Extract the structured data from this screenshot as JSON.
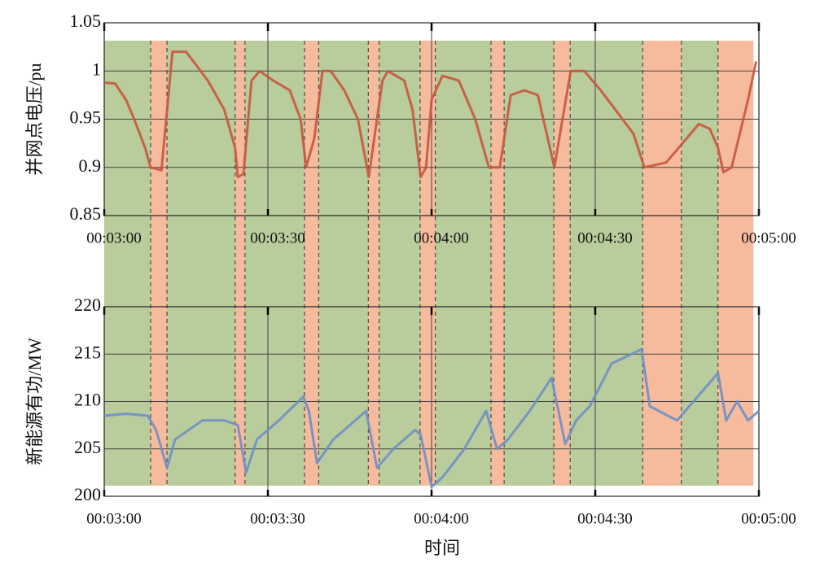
{
  "chart_data": [
    {
      "type": "line",
      "ylabel": "并网点电压/pu",
      "x": [
        180,
        182,
        184,
        185.5,
        187.5,
        188.5,
        190.5,
        192.5,
        195,
        197,
        199,
        202,
        204,
        204.5,
        205.5,
        207,
        208.5,
        211,
        214,
        216,
        217,
        218.5,
        220,
        221.5,
        224,
        226.5,
        228.5,
        229.5,
        231,
        232,
        235,
        236.5,
        238,
        239,
        240,
        242,
        245,
        248,
        250.5,
        252.5,
        254.5,
        257,
        259.5,
        260.5,
        262.5,
        264,
        265.5,
        268,
        271,
        275,
        277,
        279,
        283,
        286,
        289,
        291,
        292.5,
        293.5,
        295,
        298,
        299.5
      ],
      "series": [
        {
          "name": "并网点电压",
          "color": "#c8573e",
          "values": [
            0.988,
            0.987,
            0.97,
            0.95,
            0.92,
            0.9,
            0.897,
            1.02,
            1.02,
            1.005,
            0.99,
            0.96,
            0.92,
            0.89,
            0.893,
            0.99,
            1.0,
            0.99,
            0.98,
            0.95,
            0.9,
            0.93,
            1.0,
            1.0,
            0.98,
            0.95,
            0.89,
            0.93,
            0.99,
            1.0,
            0.99,
            0.96,
            0.89,
            0.9,
            0.97,
            0.995,
            0.99,
            0.95,
            0.9,
            0.9,
            0.975,
            0.98,
            0.975,
            0.95,
            0.9,
            0.95,
            1.0,
            1.0,
            0.98,
            0.95,
            0.935,
            0.9,
            0.905,
            0.925,
            0.945,
            0.94,
            0.92,
            0.895,
            0.9,
            0.97,
            1.01
          ]
        }
      ],
      "xlim": [
        180,
        300
      ],
      "xticks": [
        {
          "value": 180,
          "label": "00:03:00"
        },
        {
          "value": 210,
          "label": "00:03:30"
        },
        {
          "value": 240,
          "label": "00:04:00"
        },
        {
          "value": 270,
          "label": "00:04:30"
        },
        {
          "value": 300,
          "label": "00:05:00"
        }
      ],
      "ylim": [
        0.85,
        1.05
      ],
      "yticks": [
        0.85,
        0.9,
        0.95,
        1,
        1.05
      ],
      "grid": true,
      "regions": [
        {
          "start": 180,
          "end": 188.5,
          "color": "#b9cc9c"
        },
        {
          "start": 188.5,
          "end": 191.5,
          "color": "#f6bb9c"
        },
        {
          "start": 191.5,
          "end": 204,
          "color": "#b9cc9c"
        },
        {
          "start": 204,
          "end": 205.8,
          "color": "#f6bb9c"
        },
        {
          "start": 205.8,
          "end": 216.7,
          "color": "#b9cc9c"
        },
        {
          "start": 216.7,
          "end": 219.3,
          "color": "#f6bb9c"
        },
        {
          "start": 219.3,
          "end": 228.4,
          "color": "#b9cc9c"
        },
        {
          "start": 228.4,
          "end": 230.4,
          "color": "#f6bb9c"
        },
        {
          "start": 230.4,
          "end": 237.9,
          "color": "#b9cc9c"
        },
        {
          "start": 237.9,
          "end": 240.7,
          "color": "#f6bb9c"
        },
        {
          "start": 240.7,
          "end": 250.9,
          "color": "#b9cc9c"
        },
        {
          "start": 250.9,
          "end": 253.3,
          "color": "#f6bb9c"
        },
        {
          "start": 253.3,
          "end": 262.4,
          "color": "#b9cc9c"
        },
        {
          "start": 262.4,
          "end": 265.4,
          "color": "#f6bb9c"
        },
        {
          "start": 265.4,
          "end": 278.7,
          "color": "#b9cc9c"
        },
        {
          "start": 278.7,
          "end": 285.8,
          "color": "#f6bb9c"
        },
        {
          "start": 285.8,
          "end": 292.5,
          "color": "#b9cc9c"
        },
        {
          "start": 292.5,
          "end": 299,
          "color": "#f6bb9c"
        }
      ]
    },
    {
      "type": "line",
      "ylabel": "新能源有功/MW",
      "xlabel": "时间",
      "x": [
        180,
        184,
        188,
        189.5,
        191.5,
        193,
        198,
        202,
        204.5,
        206,
        208,
        212,
        216.5,
        217.5,
        219,
        222,
        227,
        228,
        230,
        233,
        237,
        238,
        240,
        242,
        246,
        250,
        252,
        254,
        258,
        262,
        264.5,
        266.5,
        269,
        273,
        278.5,
        280,
        285,
        288,
        292.5,
        294,
        296,
        298,
        300
      ],
      "series": [
        {
          "name": "新能源有功",
          "color": "#6f8fc6",
          "values": [
            208.5,
            208.7,
            208.5,
            207,
            203,
            206,
            208,
            208,
            207.5,
            202.5,
            206,
            208,
            210.5,
            209,
            203.5,
            206,
            208.5,
            209,
            203,
            205,
            207,
            206.5,
            201,
            202,
            205,
            209,
            205,
            206,
            209,
            212.5,
            205.5,
            208,
            209.5,
            214,
            215.5,
            209.5,
            208,
            210,
            213,
            208,
            210,
            208,
            209
          ]
        }
      ],
      "xlim": [
        180,
        300
      ],
      "xticks": [
        {
          "value": 180,
          "label": "00:03:00"
        },
        {
          "value": 210,
          "label": "00:03:30"
        },
        {
          "value": 240,
          "label": "00:04:00"
        },
        {
          "value": 270,
          "label": "00:04:30"
        },
        {
          "value": 300,
          "label": "00:05:00"
        }
      ],
      "ylim": [
        200,
        220
      ],
      "yticks": [
        200,
        205,
        210,
        215,
        220
      ],
      "grid": true
    }
  ]
}
